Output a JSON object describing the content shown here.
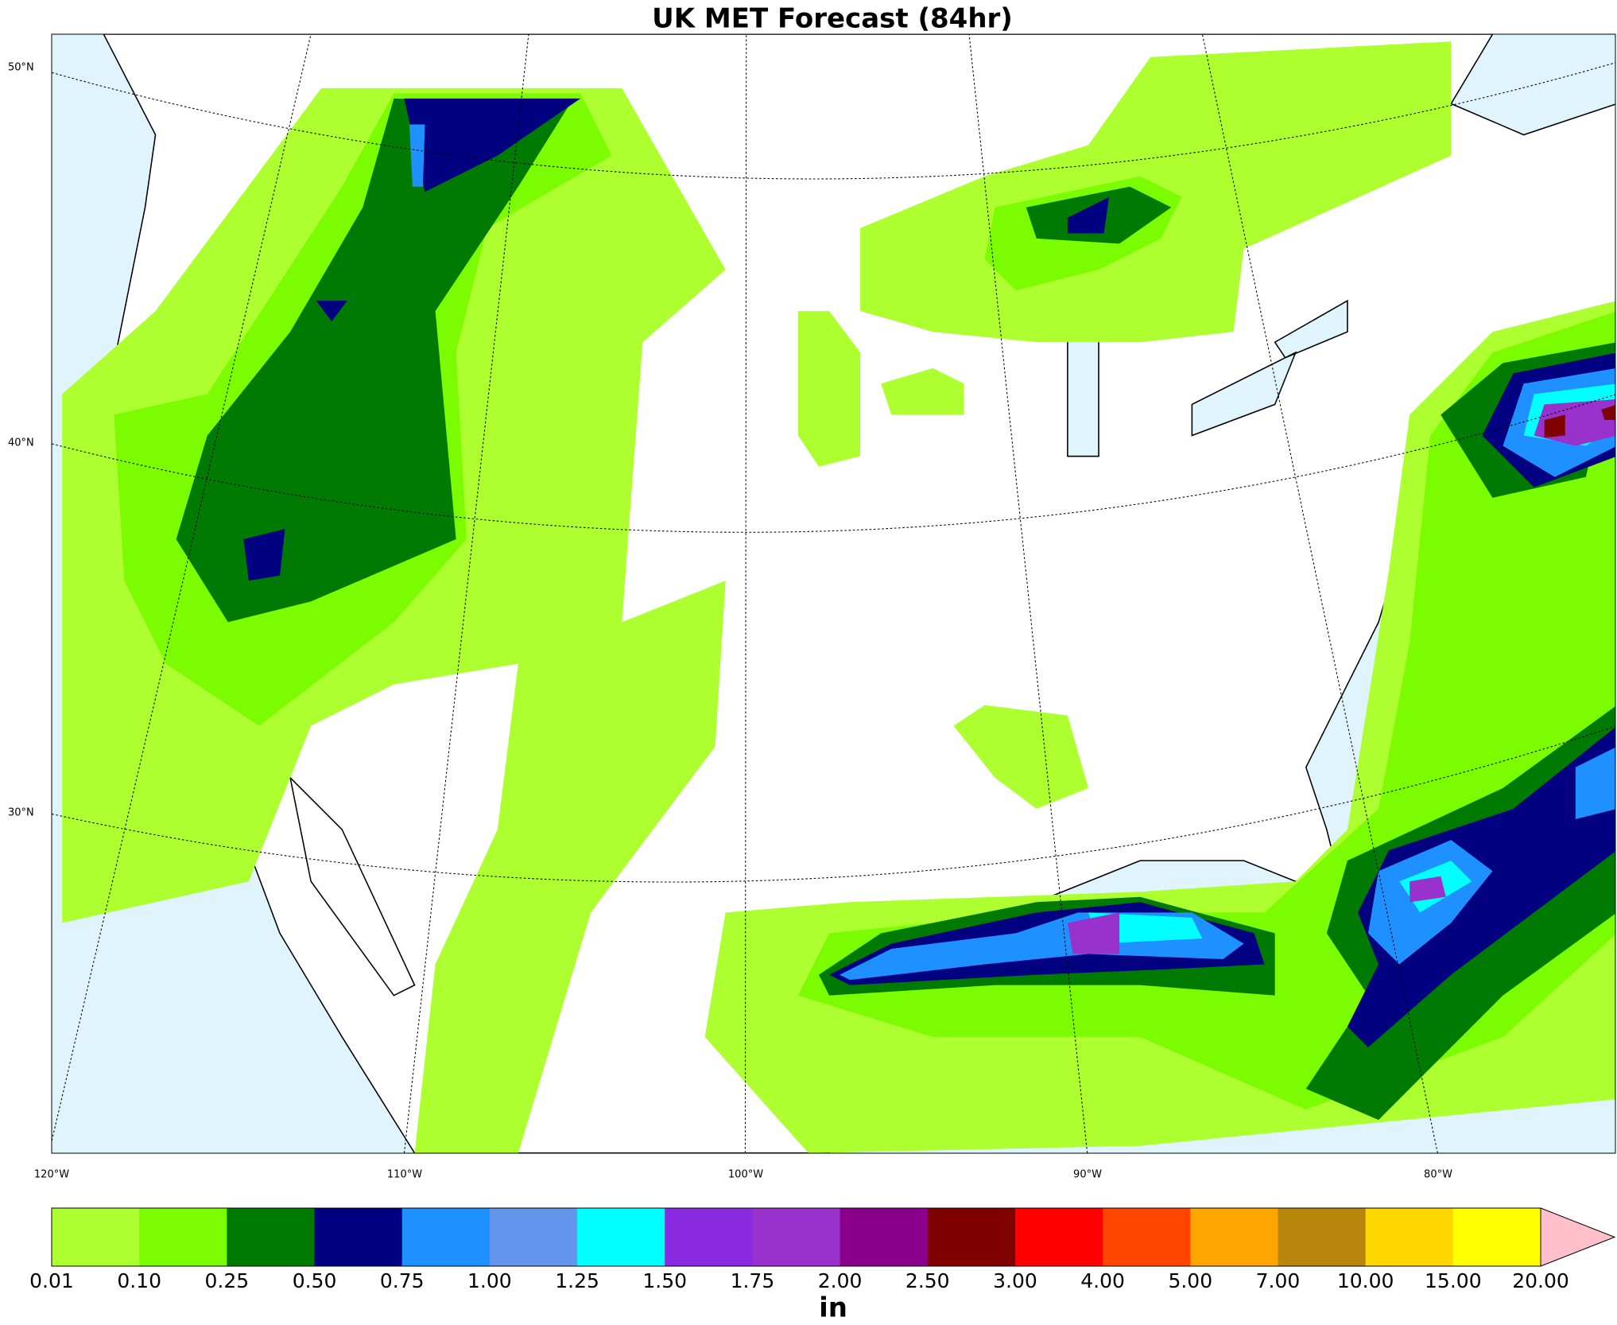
{
  "title": "UK MET Forecast (84hr)",
  "map": {
    "lat_labels": [
      "50°N",
      "40°N",
      "30°N"
    ],
    "lon_labels": [
      "120°W",
      "110°W",
      "100°W",
      "90°W",
      "80°W"
    ]
  },
  "colorbar": {
    "labels": [
      "0.01",
      "0.10",
      "0.25",
      "0.50",
      "0.75",
      "1.00",
      "1.25",
      "1.50",
      "1.75",
      "2.00",
      "2.50",
      "3.00",
      "4.00",
      "5.00",
      "7.00",
      "10.00",
      "15.00",
      "20.00"
    ],
    "colors": [
      "#adff2f",
      "#7cfc00",
      "#007a00",
      "#000080",
      "#1e90ff",
      "#6495ed",
      "#00ffff",
      "#8a2be2",
      "#9932cc",
      "#8b008b",
      "#800000",
      "#ff0000",
      "#ff4500",
      "#ffa500",
      "#b8860b",
      "#ffd700",
      "#ffff00"
    ],
    "extend_color": "#ffc0cb",
    "unit": "in"
  }
}
